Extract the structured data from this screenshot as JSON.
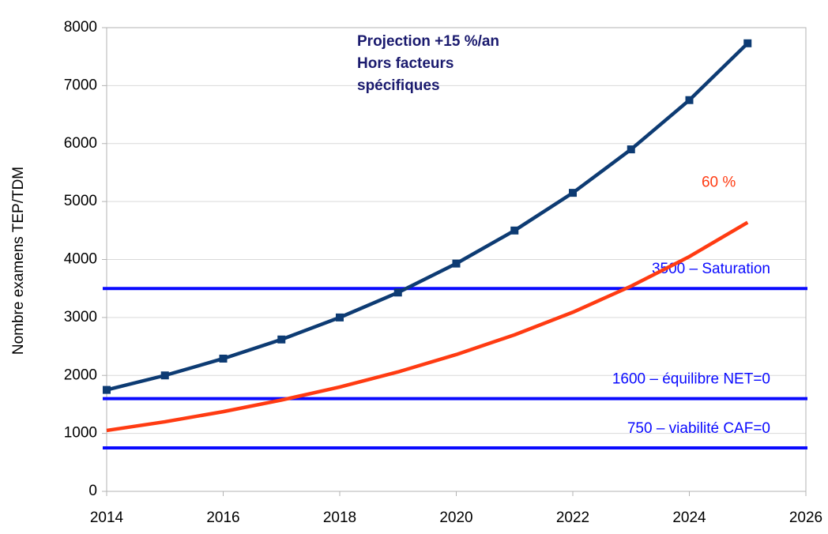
{
  "chart_data": {
    "type": "line",
    "y_label": "Nombre examens TEP/TDM",
    "annotation": [
      "Projection +15 %/an",
      "Hors facteurs",
      "spécifiques"
    ],
    "x": [
      2014,
      2015,
      2016,
      2017,
      2018,
      2019,
      2020,
      2021,
      2022,
      2023,
      2024,
      2025
    ],
    "series": [
      {
        "color": "#0d3b73",
        "marker": "square",
        "values": [
          1750,
          2000,
          2290,
          2620,
          3000,
          3430,
          3930,
          4500,
          5150,
          5900,
          6750,
          7730
        ]
      },
      {
        "name": "60 %",
        "color": "#ff3b12",
        "values": [
          1050,
          1200,
          1375,
          1575,
          1800,
          2060,
          2360,
          2700,
          3090,
          3540,
          4050,
          4640
        ]
      }
    ],
    "hlines": [
      {
        "value": 3500,
        "label": "3500 – Saturation"
      },
      {
        "value": 1600,
        "label": "1600 – équilibre NET=0"
      },
      {
        "value": 750,
        "label": "750 – viabilité CAF=0"
      }
    ],
    "hline_color": "#0a0aff",
    "xlim": [
      2014,
      2026
    ],
    "xticks": [
      2014,
      2016,
      2018,
      2020,
      2022,
      2024,
      2026
    ],
    "ylim": [
      0,
      8000
    ],
    "yticks": [
      0,
      1000,
      2000,
      3000,
      4000,
      5000,
      6000,
      7000,
      8000
    ],
    "grid": true
  }
}
